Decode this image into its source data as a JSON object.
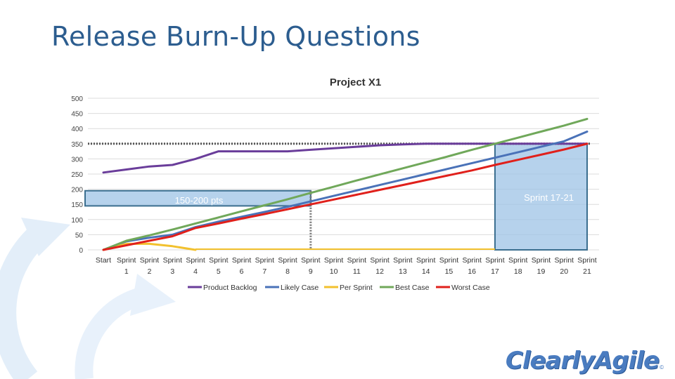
{
  "slide": {
    "title": "Release Burn-Up Questions",
    "logo_text": "ClearlyAgile",
    "logo_mark": "©"
  },
  "chart_data": {
    "type": "line",
    "title": "Project X1",
    "categories": [
      "Start",
      "Sprint 1",
      "Sprint 2",
      "Sprint 3",
      "Sprint 4",
      "Sprint 5",
      "Sprint 6",
      "Sprint 7",
      "Sprint 8",
      "Sprint 9",
      "Sprint 10",
      "Sprint 11",
      "Sprint 12",
      "Sprint 13",
      "Sprint 14",
      "Sprint 15",
      "Sprint 16",
      "Sprint 17",
      "Sprint 18",
      "Sprint 19",
      "Sprint 20",
      "Sprint 21"
    ],
    "category_lines": [
      [
        "Start",
        ""
      ],
      [
        "Sprint",
        "1"
      ],
      [
        "Sprint",
        "2"
      ],
      [
        "Sprint",
        "3"
      ],
      [
        "Sprint",
        "4"
      ],
      [
        "Sprint",
        "5"
      ],
      [
        "Sprint",
        "6"
      ],
      [
        "Sprint",
        "7"
      ],
      [
        "Sprint",
        "8"
      ],
      [
        "Sprint",
        "9"
      ],
      [
        "Sprint",
        "10"
      ],
      [
        "Sprint",
        "11"
      ],
      [
        "Sprint",
        "12"
      ],
      [
        "Sprint",
        "13"
      ],
      [
        "Sprint",
        "14"
      ],
      [
        "Sprint",
        "15"
      ],
      [
        "Sprint",
        "16"
      ],
      [
        "Sprint",
        "17"
      ],
      [
        "Sprint",
        "18"
      ],
      [
        "Sprint",
        "19"
      ],
      [
        "Sprint",
        "20"
      ],
      [
        "Sprint",
        "21"
      ]
    ],
    "ylim": [
      0,
      500
    ],
    "yticks": [
      0,
      50,
      100,
      150,
      200,
      250,
      300,
      350,
      400,
      450,
      500
    ],
    "grid": true,
    "legend_position": "bottom",
    "series": [
      {
        "name": "Product Backlog",
        "color": "#6a3d9a",
        "values": [
          255,
          265,
          275,
          280,
          300,
          325,
          325,
          325,
          325,
          330,
          335,
          340,
          345,
          348,
          350,
          350,
          350,
          350,
          350,
          350,
          350,
          350
        ]
      },
      {
        "name": "Likely Case",
        "color": "#4a72b8",
        "values": [
          0,
          28,
          40,
          50,
          75,
          93,
          109,
          125,
          142,
          160,
          178,
          196,
          214,
          232,
          250,
          268,
          286,
          304,
          322,
          340,
          358,
          390
        ]
      },
      {
        "name": "Per Sprint",
        "color": "#f2c12e",
        "values": [
          0,
          20,
          20,
          12,
          0,
          0,
          0,
          0,
          0,
          0,
          0,
          0,
          0,
          0,
          0,
          0,
          0,
          0,
          0,
          0,
          0,
          0
        ]
      },
      {
        "name": "Best Case",
        "color": "#70a85a",
        "values": [
          0,
          30,
          48,
          67,
          87,
          107,
          127,
          147,
          167,
          188,
          208,
          229,
          249,
          269,
          289,
          309,
          330,
          350,
          370,
          390,
          410,
          432
        ]
      },
      {
        "name": "Worst Case",
        "color": "#e0201b",
        "values": [
          0,
          15,
          30,
          45,
          72,
          87,
          103,
          118,
          134,
          150,
          166,
          182,
          198,
          214,
          230,
          246,
          262,
          280,
          297,
          314,
          331,
          350
        ]
      }
    ],
    "reference_line": {
      "value": 350,
      "color": "#555555",
      "style": "dotted"
    },
    "annotations": [
      {
        "label": "150-200 pts",
        "x_from": 0,
        "x_to": 9,
        "y_from": 145,
        "y_to": 195,
        "fill": "#9dc3e6",
        "border": "#3b6e8f",
        "marker_x": 9,
        "align": "center"
      },
      {
        "label": "Sprint 17-21",
        "x_from": 17,
        "x_to": 21,
        "y_from": 0,
        "y_to": 350,
        "fill": "#9dc3e6",
        "border": "#3b6e8f",
        "marker_x": 21,
        "align": "top-right"
      }
    ]
  }
}
